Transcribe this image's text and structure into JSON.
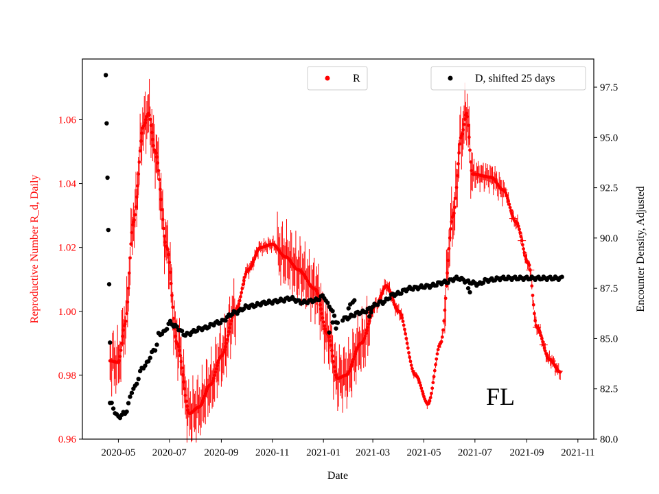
{
  "chart_data": {
    "type": "scatter",
    "xlabel": "Date",
    "ylabel_left": "Reproductive Number R_d, Daily",
    "ylabel_right": "Encounter Density, Adjusted",
    "annotation": "FL",
    "x_ticks": [
      "2020-05",
      "2020-07",
      "2020-09",
      "2020-11",
      "2021-01",
      "2021-03",
      "2021-05",
      "2021-07",
      "2021-09",
      "2021-11"
    ],
    "x_tick_days": [
      10,
      71,
      133,
      194,
      255,
      314,
      375,
      436,
      498,
      559
    ],
    "xlim_days": [
      -33,
      578
    ],
    "ylim_left": [
      0.96,
      1.079
    ],
    "ylim_right": [
      80.0,
      98.9
    ],
    "left_ticks": [
      "0.96",
      "0.98",
      "1.00",
      "1.02",
      "1.04",
      "1.06"
    ],
    "left_tick_values": [
      0.96,
      0.98,
      1.0,
      1.02,
      1.04,
      1.06
    ],
    "right_ticks": [
      "80.0",
      "82.5",
      "85.0",
      "87.5",
      "90.0",
      "92.5",
      "95.0",
      "97.5"
    ],
    "right_tick_values": [
      80.0,
      82.5,
      85.0,
      87.5,
      90.0,
      92.5,
      95.0,
      97.5
    ],
    "colors": {
      "R": "#ff0000",
      "D": "#000000"
    },
    "series": [
      {
        "name": "R",
        "color": "#ff0000",
        "axis": "left",
        "keyframes_day_value": [
          [
            0,
            0.9845
          ],
          [
            10,
            0.984
          ],
          [
            18,
            0.996
          ],
          [
            28,
            1.028
          ],
          [
            40,
            1.058
          ],
          [
            46,
            1.062
          ],
          [
            54,
            1.05
          ],
          [
            68,
            1.02
          ],
          [
            80,
            0.99
          ],
          [
            95,
            0.968
          ],
          [
            106,
            0.97
          ],
          [
            120,
            0.977
          ],
          [
            133,
            0.986
          ],
          [
            150,
            1.0
          ],
          [
            165,
            1.013
          ],
          [
            180,
            1.02
          ],
          [
            194,
            1.021
          ],
          [
            210,
            1.017
          ],
          [
            225,
            1.013
          ],
          [
            245,
            1.007
          ],
          [
            260,
            0.993
          ],
          [
            272,
            0.979
          ],
          [
            282,
            0.98
          ],
          [
            300,
            0.99
          ],
          [
            318,
            1.002
          ],
          [
            330,
            1.008
          ],
          [
            345,
            1.0
          ],
          [
            365,
            0.98
          ],
          [
            380,
            0.971
          ],
          [
            395,
            0.99
          ],
          [
            410,
            1.03
          ],
          [
            420,
            1.055
          ],
          [
            426,
            1.062
          ],
          [
            433,
            1.043
          ],
          [
            455,
            1.042
          ],
          [
            470,
            1.038
          ],
          [
            485,
            1.028
          ],
          [
            500,
            1.015
          ],
          [
            510,
            0.995
          ],
          [
            525,
            0.985
          ],
          [
            538,
            0.981
          ]
        ],
        "error_band": 0.006
      },
      {
        "name": "D, shifted 25 days",
        "color": "#000000",
        "axis": "right",
        "keyframes_day_value": [
          [
            0,
            81.8
          ],
          [
            10,
            81.1
          ],
          [
            18,
            81.3
          ],
          [
            28,
            82.5
          ],
          [
            40,
            83.6
          ],
          [
            55,
            84.5
          ],
          [
            58,
            85.2
          ],
          [
            64,
            85.3
          ],
          [
            72,
            85.8
          ],
          [
            78,
            85.6
          ],
          [
            90,
            85.2
          ],
          [
            110,
            85.5
          ],
          [
            130,
            85.8
          ],
          [
            150,
            86.3
          ],
          [
            165,
            86.6
          ],
          [
            190,
            86.8
          ],
          [
            205,
            86.9
          ],
          [
            215,
            87.0
          ],
          [
            230,
            86.8
          ],
          [
            245,
            86.9
          ],
          [
            255,
            87.1
          ],
          [
            262,
            86.6
          ],
          [
            272,
            85.8
          ],
          [
            280,
            86.0
          ],
          [
            300,
            86.3
          ],
          [
            325,
            86.8
          ],
          [
            340,
            87.2
          ],
          [
            360,
            87.5
          ],
          [
            380,
            87.6
          ],
          [
            400,
            87.8
          ],
          [
            415,
            88.0
          ],
          [
            430,
            87.8
          ],
          [
            440,
            87.7
          ],
          [
            450,
            87.9
          ],
          [
            470,
            88.0
          ],
          [
            540,
            88.0
          ]
        ],
        "outliers_day_value": [
          [
            -5,
            98.1
          ],
          [
            -4,
            95.7
          ],
          [
            -3,
            93.0
          ],
          [
            -2,
            90.4
          ],
          [
            -1,
            87.7
          ],
          [
            0,
            84.8
          ],
          [
            310,
            86.1
          ],
          [
            312,
            86.3
          ],
          [
            262,
            85.3
          ],
          [
            266,
            85.8
          ],
          [
            270,
            85.5
          ],
          [
            285,
            86.5
          ],
          [
            287,
            86.7
          ],
          [
            290,
            86.8
          ],
          [
            292,
            86.9
          ],
          [
            428,
            87.5
          ],
          [
            430,
            87.3
          ]
        ]
      }
    ],
    "legend": [
      "R",
      "D, shifted 25 days"
    ]
  }
}
